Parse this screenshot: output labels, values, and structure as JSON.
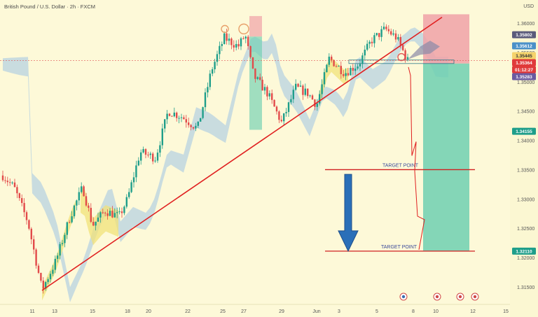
{
  "header": {
    "title": "British Pound / U.S. Dollar · 2h · FXCM",
    "currency": "USD"
  },
  "colors": {
    "background": "#fdf9d8",
    "bull": "#1e9e8a",
    "bear": "#e24a4a",
    "trendline": "#e02020",
    "cloud_bull": "#9fc4e6",
    "cloud_bear": "#f0e27a",
    "stop_zone": "#f0a2a8",
    "target_zone": "#6fd0b2",
    "arrow": "#2a6fb8"
  },
  "chart_data": {
    "type": "candlestick",
    "title": "British Pound / U.S. Dollar · 2h · FXCM",
    "x_tick_labels": [
      "11",
      "13",
      "15",
      "18",
      "20",
      "22",
      "25",
      "27",
      "29",
      "Jun",
      "3",
      "5",
      "8",
      "10",
      "12",
      "15"
    ],
    "y_tick_labels": [
      "1.36000",
      "1.35500",
      "1.35000",
      "1.34500",
      "1.34000",
      "1.33500",
      "1.33000",
      "1.32500",
      "1.32000",
      "1.31500"
    ],
    "ylim": [
      1.3115,
      1.3615
    ],
    "grid": false,
    "price_labels": [
      {
        "value": "1.35802",
        "color": "#5a5a7a"
      },
      {
        "value": "1.35612",
        "color": "#4a90c8"
      },
      {
        "value": "1.35445",
        "color": "#f5d36b"
      },
      {
        "value": "1.35364",
        "color": "#e03a3a"
      },
      {
        "value": "01:12:27",
        "color": "#e03a3a"
      },
      {
        "value": "1.35283",
        "color": "#6a5aa0"
      },
      {
        "value": "1.34155",
        "color": "#1e9e8a"
      },
      {
        "value": "1.32110",
        "color": "#1e9e8a"
      }
    ],
    "annotations": [
      {
        "text": "TARGET POINT",
        "price": 1.335
      },
      {
        "text": "TARGET POINT",
        "price": 1.3211
      }
    ],
    "trendline": {
      "start": {
        "x_label": "11",
        "price": 1.3144
      },
      "end": {
        "x_label": "8",
        "price": 1.361
      }
    },
    "position": {
      "entry": 1.3531,
      "stop": 1.3615,
      "target": 1.3211
    },
    "event_icon_count": 4
  }
}
